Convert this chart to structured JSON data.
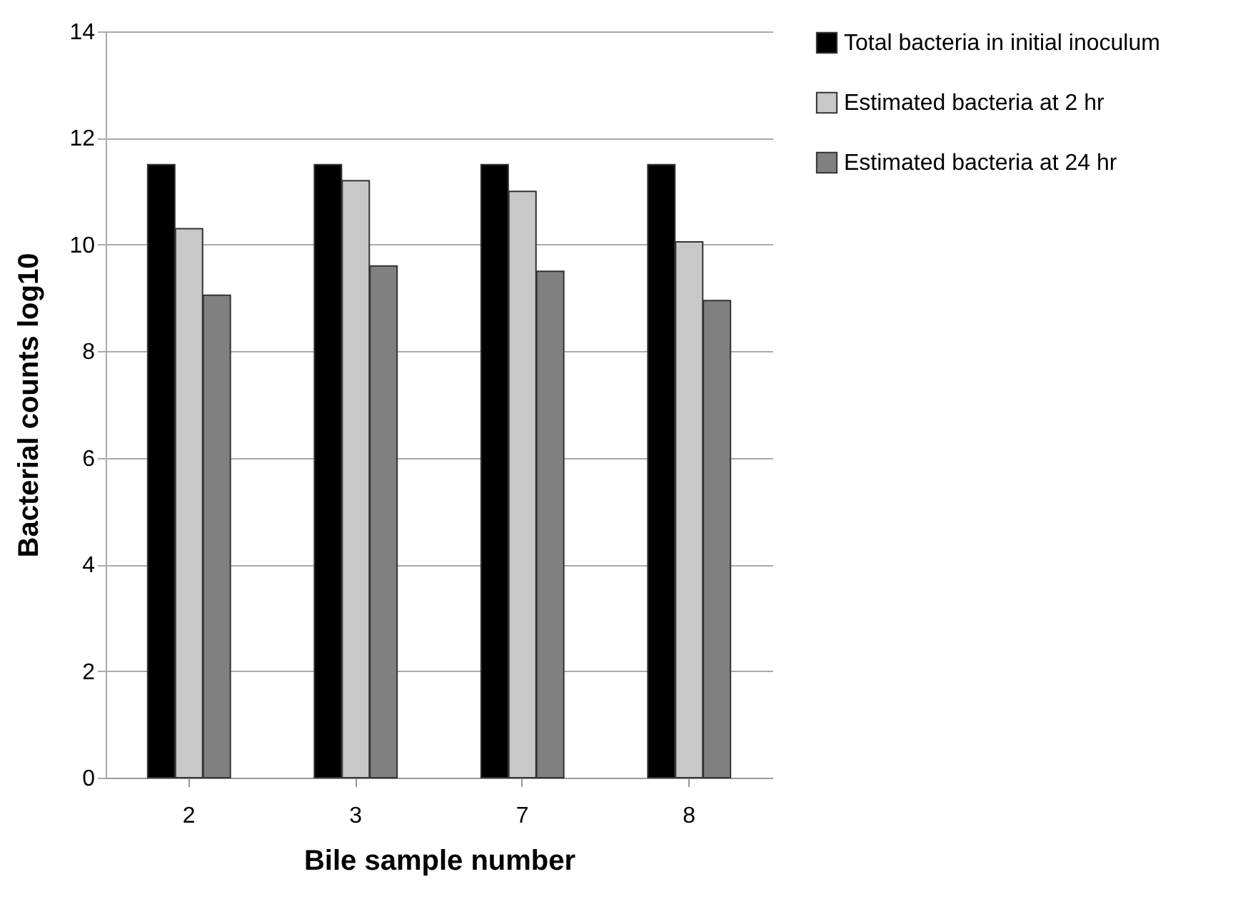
{
  "chart_data": {
    "type": "bar",
    "xlabel": "Bile sample number",
    "ylabel": "Bacterial counts log10",
    "categories": [
      "2",
      "3",
      "7",
      "8"
    ],
    "series": [
      {
        "name": "Total bacteria in initial inoculum",
        "color": "#000000",
        "values": [
          11.5,
          11.5,
          11.5,
          11.5
        ]
      },
      {
        "name": "Estimated bacteria at 2 hr",
        "color": "#c8c8c8",
        "values": [
          10.3,
          11.2,
          11.0,
          10.05
        ]
      },
      {
        "name": "Estimated bacteria at 24 hr",
        "color": "#808080",
        "values": [
          9.05,
          9.6,
          9.5,
          8.95
        ]
      }
    ],
    "ylim": [
      0,
      14
    ],
    "yticks": [
      0,
      2,
      4,
      6,
      8,
      10,
      12,
      14
    ],
    "grid": "y",
    "legend": "right"
  }
}
